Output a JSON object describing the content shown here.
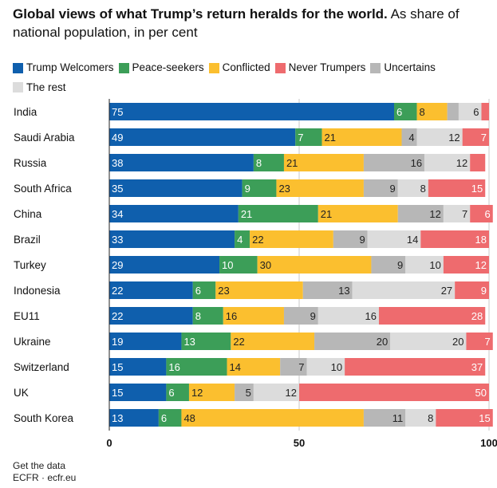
{
  "header": {
    "title_bold": "Global views of what Trump’s return heralds for the world.",
    "title_rest": " As share of national population, in per cent"
  },
  "footer": {
    "line1": "Get the data",
    "line2": "ECFR · ecfr.eu"
  },
  "chart_data": {
    "type": "bar",
    "orientation": "horizontal",
    "stacked": true,
    "categories": [
      "India",
      "Saudi Arabia",
      "Russia",
      "South Africa",
      "China",
      "Brazil",
      "Turkey",
      "Indonesia",
      "EU11",
      "Ukraine",
      "Switzerland",
      "UK",
      "South Korea"
    ],
    "series": [
      {
        "name": "Trump Welcomers",
        "color": "#0f5fad",
        "values": [
          75,
          49,
          38,
          35,
          34,
          33,
          29,
          22,
          22,
          19,
          15,
          15,
          13
        ],
        "labels": [
          "75",
          "49",
          "38",
          "35",
          "34",
          "33",
          "29",
          "22",
          "22",
          "19",
          "15",
          "15",
          "13"
        ],
        "label_color": "#ffffff",
        "label_align": "left"
      },
      {
        "name": "Peace-seekers",
        "color": "#3c9e58",
        "values": [
          6,
          7,
          8,
          9,
          21,
          4,
          10,
          6,
          8,
          13,
          16,
          6,
          6
        ],
        "labels": [
          "6",
          "7",
          "8",
          "9",
          "21",
          "4",
          "10",
          "6",
          "8",
          "13",
          "16",
          "6",
          "6"
        ],
        "label_color": "#ffffff",
        "label_align": "left"
      },
      {
        "name": "Conflicted",
        "color": "#fbbf2f",
        "values": [
          8,
          21,
          21,
          23,
          21,
          22,
          30,
          23,
          16,
          22,
          14,
          12,
          48
        ],
        "labels": [
          "8",
          "21",
          "21",
          "23",
          "21",
          "22",
          "30",
          "23",
          "16",
          "22",
          "14",
          "12",
          "48"
        ],
        "label_color": "#222222",
        "label_align": "left"
      },
      {
        "name": "Uncertains",
        "color": "#b7b7b7",
        "values": [
          3,
          4,
          16,
          9,
          12,
          9,
          9,
          13,
          9,
          20,
          7,
          5,
          11
        ],
        "labels": [
          "",
          "4",
          "16",
          "9",
          "12",
          "9",
          "9",
          "13",
          "9",
          "20",
          "7",
          "5",
          "11"
        ],
        "label_color": "#222222",
        "label_align": "right"
      },
      {
        "name": "The rest",
        "color": "#dcdcdc",
        "values": [
          6,
          12,
          12,
          8,
          7,
          14,
          10,
          27,
          16,
          20,
          10,
          12,
          8
        ],
        "labels": [
          "6",
          "12",
          "12",
          "8",
          "7",
          "14",
          "10",
          "27",
          "16",
          "20",
          "10",
          "12",
          "8"
        ],
        "label_color": "#222222",
        "label_align": "right"
      },
      {
        "name": "Never Trumpers",
        "color": "#ee6b6e",
        "values": [
          2,
          7,
          4,
          15,
          6,
          18,
          12,
          9,
          28,
          7,
          37,
          50,
          15
        ],
        "labels": [
          "",
          "7",
          "",
          "15",
          "6",
          "18",
          "12",
          "9",
          "28",
          "7",
          "37",
          "50",
          "15"
        ],
        "label_color": "#ffffff",
        "label_align": "right"
      }
    ],
    "stack_order": [
      "Trump Welcomers",
      "Peace-seekers",
      "Conflicted",
      "Uncertains",
      "The rest",
      "Never Trumpers"
    ],
    "legend_order": [
      "Trump Welcomers",
      "Peace-seekers",
      "Conflicted",
      "Never Trumpers",
      "Uncertains",
      "The rest"
    ],
    "xlim": [
      0,
      100
    ],
    "xticks": [
      0,
      50,
      100
    ],
    "xlabel": "",
    "ylabel": "",
    "grid": true,
    "legend_position": "top-left"
  }
}
